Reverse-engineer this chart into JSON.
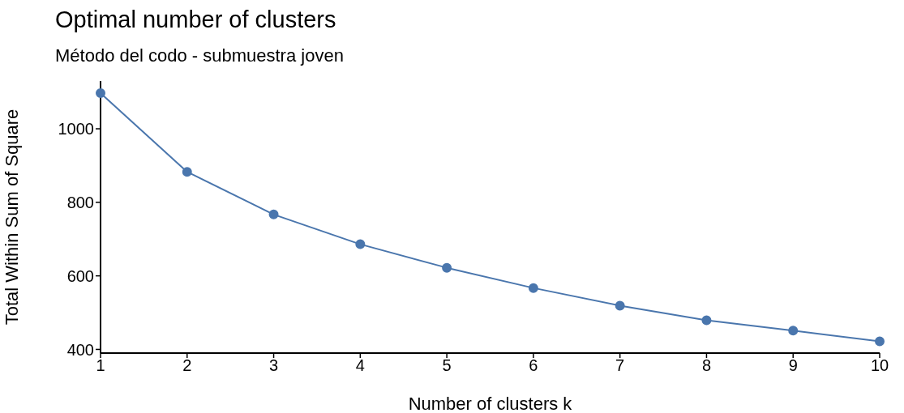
{
  "chart_data": {
    "type": "line",
    "title": "Optimal number of clusters",
    "subtitle": "Método del codo - submuestra joven",
    "xlabel": "Number of clusters k",
    "ylabel": "Total Within Sum of Square",
    "categories": [
      "1",
      "2",
      "3",
      "4",
      "5",
      "6",
      "7",
      "8",
      "9",
      "10"
    ],
    "series": [
      {
        "color": "#4a76ad",
        "values": [
          1097,
          883,
          767,
          686,
          622,
          567,
          519,
          479,
          451,
          422
        ]
      }
    ],
    "ylim": [
      390,
      1130
    ],
    "yticks": [
      400,
      600,
      800,
      1000
    ],
    "grid": false,
    "legend": false,
    "marker": "circle",
    "line_style": "solid"
  }
}
